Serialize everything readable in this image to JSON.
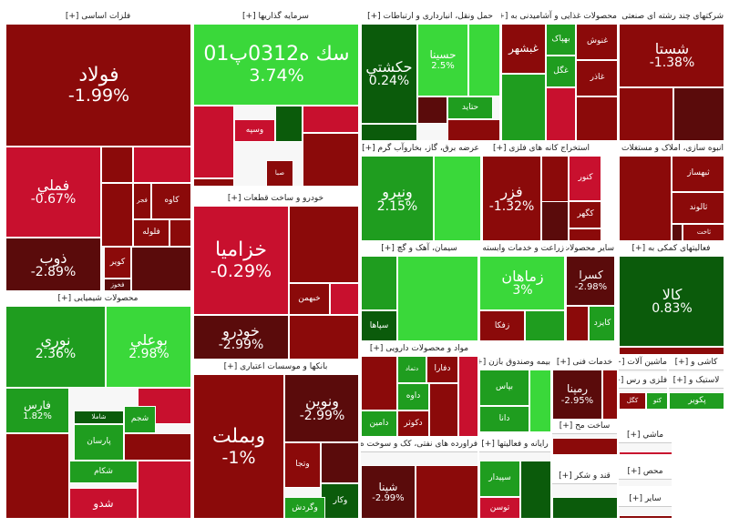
{
  "chart_data": {
    "type": "treemap",
    "colors": {
      "deep_red": "#5a0b0b",
      "red": "#8b0a0a",
      "bright_red": "#c8102e",
      "dark_green": "#0b5b0b",
      "green": "#1f9d1f",
      "bright_green": "#3ad83a"
    },
    "sectors": [
      {
        "name": "فلزات اساسی [+]",
        "tiles": [
          {
            "name": "فولاد",
            "change": "-1.99%",
            "value": -1.99
          },
          {
            "name": "فملي",
            "change": "-0.67%",
            "value": -0.67
          },
          {
            "name": "ذوب",
            "change": "-2.89%",
            "value": -2.89
          },
          {
            "name": "کاوه",
            "change": "",
            "value": -1.5
          },
          {
            "name": "فجر",
            "change": "",
            "value": -1.2
          },
          {
            "name": "فلوله",
            "change": "",
            "value": -2.1
          },
          {
            "name": "کویر",
            "change": "",
            "value": -1.8
          },
          {
            "name": "فخوز",
            "change": "",
            "value": -2.5
          }
        ]
      },
      {
        "name": "سرمایه گذاریها [+]",
        "tiles": [
          {
            "name": "سك ه0312پ01",
            "change": "3.74%",
            "value": 3.74
          },
          {
            "name": "وسپه",
            "change": "",
            "value": -0.5
          },
          {
            "name": "صبا",
            "change": "",
            "value": -1.0
          }
        ]
      },
      {
        "name": "حمل ونقل، انبارداری و ارتباطات [+]",
        "tiles": [
          {
            "name": "حکشتي",
            "change": "0.24%",
            "value": 0.24
          },
          {
            "name": "حسينا",
            "change": "2.5%",
            "value": 2.5
          },
          {
            "name": "حتايد",
            "change": "",
            "value": 1.2
          }
        ]
      },
      {
        "name": "محصولات غذایی و آشامیدنی به [+]",
        "tiles": [
          {
            "name": "غنوش",
            "change": "",
            "value": -1.5
          },
          {
            "name": "بهپاک",
            "change": "",
            "value": 1.5
          },
          {
            "name": "غگل",
            "change": "",
            "value": 1.0
          },
          {
            "name": "غاذر",
            "change": "",
            "value": -1.0
          },
          {
            "name": "غبشهر",
            "change": "",
            "value": -1.2
          }
        ]
      },
      {
        "name": "شرکتهای چند رشته ای صنعتی [+]",
        "tiles": [
          {
            "name": "شستا",
            "change": "-1.38%",
            "value": -1.38
          }
        ]
      },
      {
        "name": "خودرو و ساخت قطعات [+]",
        "tiles": [
          {
            "name": "خزاميا",
            "change": "-0.29%",
            "value": -0.29
          },
          {
            "name": "خودرو",
            "change": "-2.99%",
            "value": -2.99
          },
          {
            "name": "خبهمن",
            "change": "",
            "value": -1.0
          }
        ]
      },
      {
        "name": "عرضه برق، گاز، بخاروآب گرم [+]",
        "tiles": [
          {
            "name": "ونيرو",
            "change": "2.15%",
            "value": 2.15
          }
        ]
      },
      {
        "name": "استخراج کانه های فلزی [+]",
        "tiles": [
          {
            "name": "فزر",
            "change": "-1.32%",
            "value": -1.32
          },
          {
            "name": "کنور",
            "change": "",
            "value": -0.8
          },
          {
            "name": "کگهر",
            "change": "",
            "value": -1.1
          }
        ]
      },
      {
        "name": "انبوه سازی، املاک و مستغلات [+]",
        "tiles": [
          {
            "name": "ثبهساز",
            "change": "",
            "value": -1.8
          },
          {
            "name": "ثالوند",
            "change": "",
            "value": -1.6
          },
          {
            "name": "ثاخت",
            "change": "",
            "value": -2.0
          }
        ]
      },
      {
        "name": "محصولات شیمیایی [+]",
        "tiles": [
          {
            "name": "نوري",
            "change": "2.36%",
            "value": 2.36
          },
          {
            "name": "بوعلي",
            "change": "2.98%",
            "value": 2.98
          },
          {
            "name": "فارس",
            "change": "1.82%",
            "value": 1.82
          },
          {
            "name": "پارسان",
            "change": "",
            "value": 1.2
          },
          {
            "name": "شاملا",
            "change": "",
            "value": 0.8
          },
          {
            "name": "شجم",
            "change": "",
            "value": 1.1
          },
          {
            "name": "شکام",
            "change": "",
            "value": 1.4
          },
          {
            "name": "شدو",
            "change": "",
            "value": -0.6
          }
        ]
      },
      {
        "name": "بانکها و موسسات اعتباری [+]",
        "tiles": [
          {
            "name": "وبملت",
            "change": "-1%",
            "value": -1.0
          },
          {
            "name": "ونوين",
            "change": "-2.99%",
            "value": -2.99
          },
          {
            "name": "وتجا",
            "change": "",
            "value": -1.5
          },
          {
            "name": "وکار",
            "change": "",
            "value": 0.5
          },
          {
            "name": "وگردش",
            "change": "",
            "value": 1.1
          }
        ]
      },
      {
        "name": "سیمان، آهک و گچ [+]",
        "tiles": [
          {
            "name": "سپاها",
            "change": "",
            "value": 0.6
          }
        ]
      },
      {
        "name": "زراعت و خدمات وابسته [+]",
        "tiles": [
          {
            "name": "زماهان",
            "change": "3%",
            "value": 3.0
          },
          {
            "name": "زفكا",
            "change": "",
            "value": -1.5
          }
        ]
      },
      {
        "name": "سایر محصولات کا [+]",
        "tiles": [
          {
            "name": "کسرا",
            "change": "-2.98%",
            "value": -2.98
          },
          {
            "name": "کايزد",
            "change": "",
            "value": 1.3
          }
        ]
      },
      {
        "name": "فعالیتهای کمکی به [+]",
        "tiles": [
          {
            "name": "کالا",
            "change": "0.83%",
            "value": 0.83
          }
        ]
      },
      {
        "name": "مواد و محصولات دارویی [+]",
        "tiles": [
          {
            "name": "دتماد",
            "change": "",
            "value": 1.2
          },
          {
            "name": "دفارا",
            "change": "",
            "value": -1.2
          },
          {
            "name": "داوه",
            "change": "",
            "value": 1.0
          },
          {
            "name": "دامين",
            "change": "",
            "value": 1.5
          },
          {
            "name": "دکوثر",
            "change": "",
            "value": -1.0
          }
        ]
      },
      {
        "name": "بیمه وصندوق بازن [+]",
        "tiles": [
          {
            "name": "بپاس",
            "change": "",
            "value": 1.0
          },
          {
            "name": "دانا",
            "change": "",
            "value": 1.3
          }
        ]
      },
      {
        "name": "خدمات فنی [+]",
        "tiles": [
          {
            "name": "رمپنا",
            "change": "-2.95%",
            "value": -2.95
          }
        ]
      },
      {
        "name": "ماشین آلات [+]",
        "tiles": []
      },
      {
        "name": "کاشی و [+]",
        "tiles": []
      },
      {
        "name": "فلزی و رس [+]",
        "tiles": [
          {
            "name": "کگل",
            "change": "",
            "value": -1.0
          },
          {
            "name": "کتو",
            "change": "",
            "value": 1.2
          }
        ]
      },
      {
        "name": "لاستیک و [+]",
        "tiles": [
          {
            "name": "پکوير",
            "change": "",
            "value": 1.2
          }
        ]
      },
      {
        "name": "ساخت مح [+]",
        "tiles": []
      },
      {
        "name": "فراورده های نفتی، کک و سوخت ه [+]",
        "tiles": [
          {
            "name": "شپنا",
            "change": "-2.99%",
            "value": -2.99
          }
        ]
      },
      {
        "name": "رایانه و فعالیتها [+]",
        "tiles": [
          {
            "name": "سپيدار",
            "change": "",
            "value": 1.3
          },
          {
            "name": "توسن",
            "change": "",
            "value": -0.8
          }
        ]
      },
      {
        "name": "قند و شکر [+]",
        "tiles": []
      },
      {
        "name": "ماشي [+]",
        "tiles": []
      },
      {
        "name": "محص [+]",
        "tiles": []
      },
      {
        "name": "سایر [+]",
        "tiles": []
      }
    ]
  }
}
